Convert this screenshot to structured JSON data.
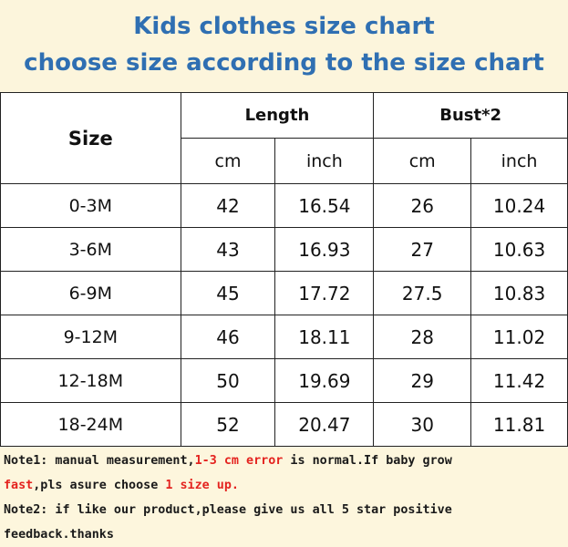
{
  "title": {
    "line1": "Kids clothes size chart",
    "line2": "choose size according to the size chart"
  },
  "table": {
    "size_header": "Size",
    "group_headers": [
      "Length",
      "Bust*2"
    ],
    "unit_headers": [
      "cm",
      "inch",
      "cm",
      "inch"
    ],
    "rows": [
      {
        "size": "0-3M",
        "length_cm": "42",
        "length_inch": "16.54",
        "bust_cm": "26",
        "bust_inch": "10.24"
      },
      {
        "size": "3-6M",
        "length_cm": "43",
        "length_inch": "16.93",
        "bust_cm": "27",
        "bust_inch": "10.63"
      },
      {
        "size": "6-9M",
        "length_cm": "45",
        "length_inch": "17.72",
        "bust_cm": "27.5",
        "bust_inch": "10.83"
      },
      {
        "size": "9-12M",
        "length_cm": "46",
        "length_inch": "18.11",
        "bust_cm": "28",
        "bust_inch": "11.02"
      },
      {
        "size": "12-18M",
        "length_cm": "50",
        "length_inch": "19.69",
        "bust_cm": "29",
        "bust_inch": "11.42"
      },
      {
        "size": "18-24M",
        "length_cm": "52",
        "length_inch": "20.47",
        "bust_cm": "30",
        "bust_inch": "11.81"
      }
    ]
  },
  "notes": {
    "note1_a": "Note1: manual measurement,",
    "note1_b": "1-3 cm error",
    "note1_c": " is normal.If baby grow",
    "note1_d": "fast",
    "note1_e": ",pls asure choose ",
    "note1_f": "1 size up.",
    "note2_a": "Note2: if like our product,please give us all 5 star positive",
    "note2_b": "feedback.thanks"
  },
  "colors": {
    "title": "#2f6fb2",
    "accent_red": "#e4231f",
    "background": "#fdf7e3"
  }
}
